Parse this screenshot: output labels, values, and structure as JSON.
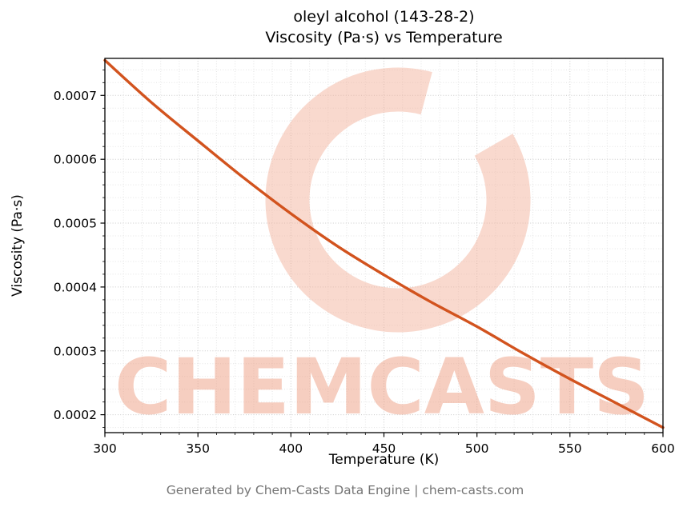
{
  "chart_data": {
    "type": "line",
    "title_line1": "oleyl alcohol (143-28-2)",
    "title_line2": "Viscosity (Pa·s) vs Temperature",
    "xlabel": "Temperature (K)",
    "ylabel": "Viscosity (Pa·s)",
    "x": [
      300,
      325,
      350,
      375,
      400,
      425,
      450,
      475,
      500,
      525,
      550,
      575,
      600
    ],
    "y": [
      0.000755,
      0.000689,
      0.000629,
      0.00057,
      0.000515,
      0.000464,
      0.000419,
      0.000377,
      0.000338,
      0.000296,
      0.000256,
      0.000218,
      0.00018
    ],
    "xlim": [
      300,
      600
    ],
    "ylim": [
      0.000172,
      0.000758
    ],
    "xticks": [
      300,
      350,
      400,
      450,
      500,
      550,
      600
    ],
    "yticks": [
      0.0002,
      0.0003,
      0.0004,
      0.0005,
      0.0006,
      0.0007
    ],
    "ytick_labels": [
      "0.0002",
      "0.0003",
      "0.0004",
      "0.0005",
      "0.0006",
      "0.0007"
    ],
    "x_minor_step": 10,
    "y_minor_step": 2e-05,
    "grid": true,
    "legend": "none",
    "line_color": "#d2531e",
    "watermark": {
      "text": "CHEMCASTS",
      "logo": "c-swirl-logo",
      "text_color": "#ee9e82",
      "logo_color": "#f3b49e"
    }
  },
  "footer": "Generated by Chem-Casts Data Engine | chem-casts.com"
}
